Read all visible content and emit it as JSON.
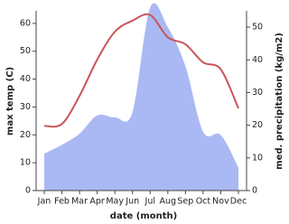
{
  "chart_data": {
    "type": "line-area",
    "categories": [
      "Jan",
      "Feb",
      "Mar",
      "Apr",
      "May",
      "Jun",
      "Jul",
      "Aug",
      "Sep",
      "Oct",
      "Nov",
      "Dec"
    ],
    "xlabel": "date (month)",
    "ylabel": "max temp (C)",
    "y2label": "med. precipitation (kg/m2)",
    "ylim": [
      0,
      64.5
    ],
    "yticks": [
      0,
      10,
      20,
      30,
      40,
      50,
      60
    ],
    "y2lim": [
      0,
      55
    ],
    "y2ticks": [
      0,
      10,
      20,
      30,
      40,
      50
    ],
    "series": [
      {
        "name": "med. precipitation",
        "type": "area",
        "axis": "y2",
        "color": "#aab9f3",
        "values": [
          11.3,
          14,
          17.4,
          23,
          22.4,
          24,
          56,
          50,
          38,
          18,
          17,
          7
        ]
      },
      {
        "name": "max temp",
        "type": "line",
        "axis": "y",
        "color": "#c9555a",
        "values": [
          23.2,
          23.9,
          34,
          47,
          57,
          61,
          63,
          55,
          52.5,
          46,
          43.5,
          29.5
        ]
      }
    ]
  }
}
